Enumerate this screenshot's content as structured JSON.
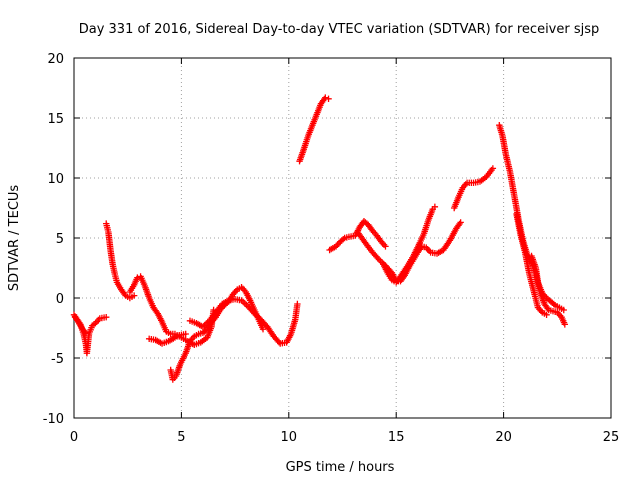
{
  "chart_data": {
    "type": "scatter",
    "title": "Day 331 of 2016, Sidereal Day-to-day VTEC variation (SDTVAR) for receiver sjsp",
    "xlabel": "GPS time / hours",
    "ylabel": "SDTVAR / TECUs",
    "xlim": [
      0,
      25
    ],
    "ylim": [
      -10,
      20
    ],
    "xticks": [
      "0",
      "5",
      "10",
      "15",
      "20",
      "25"
    ],
    "yticks": [
      "-10",
      "-5",
      "0",
      "5",
      "10",
      "15",
      "20"
    ],
    "grid": true,
    "marker": "plus",
    "series": [
      {
        "color": "#ff0000",
        "segments": [
          [
            [
              0.0,
              -1.4
            ],
            [
              0.15,
              -1.8
            ],
            [
              0.3,
              -2.2
            ],
            [
              0.45,
              -3.0
            ],
            [
              0.55,
              -3.8
            ],
            [
              0.6,
              -4.6
            ],
            [
              0.7,
              -3.0
            ],
            [
              0.85,
              -2.3
            ],
            [
              1.0,
              -2.1
            ],
            [
              1.2,
              -1.7
            ],
            [
              1.5,
              -1.6
            ]
          ],
          [
            [
              0.05,
              -1.6
            ],
            [
              0.2,
              -2.0
            ],
            [
              0.4,
              -2.6
            ],
            [
              0.55,
              -2.9
            ]
          ],
          [
            [
              1.5,
              6.2
            ],
            [
              1.6,
              5.5
            ],
            [
              1.7,
              4.0
            ],
            [
              1.8,
              2.8
            ],
            [
              1.9,
              2.0
            ],
            [
              2.0,
              1.3
            ],
            [
              2.2,
              0.7
            ],
            [
              2.4,
              0.2
            ],
            [
              2.6,
              0.0
            ],
            [
              2.8,
              0.2
            ]
          ],
          [
            [
              2.6,
              0.5
            ],
            [
              2.8,
              1.1
            ],
            [
              2.95,
              1.7
            ],
            [
              3.1,
              1.8
            ],
            [
              3.3,
              1.0
            ],
            [
              3.5,
              0.0
            ],
            [
              3.7,
              -0.8
            ],
            [
              3.9,
              -1.3
            ],
            [
              4.1,
              -2.0
            ],
            [
              4.3,
              -2.8
            ],
            [
              4.5,
              -3.0
            ],
            [
              4.7,
              -3.0
            ],
            [
              4.9,
              -3.2
            ],
            [
              5.1,
              -3.4
            ],
            [
              5.3,
              -3.6
            ],
            [
              5.6,
              -3.9
            ],
            [
              5.9,
              -3.7
            ],
            [
              6.2,
              -3.3
            ],
            [
              6.4,
              -2.4
            ],
            [
              6.5,
              -1.0
            ]
          ],
          [
            [
              3.5,
              -3.4
            ],
            [
              3.8,
              -3.5
            ],
            [
              4.1,
              -3.8
            ],
            [
              4.4,
              -3.6
            ],
            [
              4.7,
              -3.3
            ],
            [
              4.9,
              -3.1
            ],
            [
              5.2,
              -3.0
            ]
          ],
          [
            [
              4.5,
              -6.0
            ],
            [
              4.6,
              -6.8
            ],
            [
              4.75,
              -6.5
            ],
            [
              4.95,
              -5.5
            ],
            [
              5.2,
              -4.6
            ],
            [
              5.4,
              -3.6
            ],
            [
              5.6,
              -3.2
            ],
            [
              5.8,
              -3.0
            ],
            [
              6.0,
              -2.9
            ],
            [
              6.2,
              -2.6
            ],
            [
              6.4,
              -2.0
            ],
            [
              6.6,
              -1.6
            ],
            [
              6.8,
              -1.0
            ],
            [
              7.0,
              -0.6
            ],
            [
              7.2,
              -0.3
            ],
            [
              7.4,
              0.3
            ],
            [
              7.6,
              0.7
            ],
            [
              7.8,
              0.9
            ],
            [
              8.0,
              0.5
            ],
            [
              8.2,
              -0.2
            ],
            [
              8.4,
              -1.0
            ],
            [
              8.6,
              -1.8
            ],
            [
              8.8,
              -2.6
            ]
          ],
          [
            [
              5.4,
              -1.9
            ],
            [
              5.7,
              -2.1
            ],
            [
              6.0,
              -2.4
            ],
            [
              6.3,
              -1.9
            ],
            [
              6.6,
              -1.2
            ],
            [
              6.9,
              -0.5
            ],
            [
              7.2,
              -0.2
            ],
            [
              7.5,
              -0.1
            ],
            [
              7.8,
              -0.2
            ],
            [
              8.1,
              -0.7
            ],
            [
              8.4,
              -1.3
            ],
            [
              8.7,
              -1.8
            ],
            [
              9.0,
              -2.4
            ],
            [
              9.3,
              -3.2
            ],
            [
              9.6,
              -3.8
            ],
            [
              9.9,
              -3.7
            ],
            [
              10.1,
              -3.0
            ],
            [
              10.3,
              -1.8
            ],
            [
              10.4,
              -0.5
            ]
          ],
          [
            [
              10.5,
              11.4
            ],
            [
              10.7,
              12.4
            ],
            [
              10.9,
              13.5
            ],
            [
              11.1,
              14.4
            ],
            [
              11.3,
              15.3
            ],
            [
              11.5,
              16.2
            ],
            [
              11.7,
              16.7
            ],
            [
              11.85,
              16.6
            ]
          ],
          [
            [
              11.9,
              4.0
            ],
            [
              12.2,
              4.3
            ],
            [
              12.4,
              4.7
            ],
            [
              12.6,
              5.0
            ],
            [
              12.8,
              5.1
            ],
            [
              13.1,
              5.2
            ],
            [
              13.3,
              5.9
            ],
            [
              13.5,
              6.4
            ],
            [
              13.7,
              6.1
            ],
            [
              13.9,
              5.6
            ],
            [
              14.1,
              5.2
            ],
            [
              14.3,
              4.7
            ],
            [
              14.5,
              4.3
            ]
          ],
          [
            [
              13.2,
              5.5
            ],
            [
              13.4,
              5.0
            ],
            [
              13.6,
              4.5
            ],
            [
              13.9,
              3.8
            ],
            [
              14.2,
              3.2
            ],
            [
              14.5,
              2.7
            ],
            [
              14.8,
              2.1
            ],
            [
              15.0,
              1.4
            ],
            [
              15.2,
              1.4
            ],
            [
              15.4,
              1.9
            ],
            [
              15.6,
              2.6
            ],
            [
              15.8,
              3.2
            ],
            [
              16.0,
              3.8
            ],
            [
              16.2,
              4.3
            ],
            [
              16.4,
              4.2
            ],
            [
              16.6,
              3.8
            ],
            [
              16.9,
              3.7
            ],
            [
              17.2,
              4.0
            ],
            [
              17.5,
              4.8
            ],
            [
              17.8,
              5.8
            ],
            [
              18.0,
              6.3
            ]
          ],
          [
            [
              14.4,
              2.8
            ],
            [
              14.6,
              2.1
            ],
            [
              14.8,
              1.5
            ],
            [
              15.0,
              1.3
            ],
            [
              15.2,
              1.8
            ],
            [
              15.5,
              2.6
            ],
            [
              15.8,
              3.5
            ],
            [
              16.1,
              4.6
            ],
            [
              16.3,
              5.4
            ],
            [
              16.5,
              6.5
            ],
            [
              16.7,
              7.4
            ],
            [
              16.8,
              7.6
            ]
          ],
          [
            [
              17.7,
              7.5
            ],
            [
              17.9,
              8.4
            ],
            [
              18.1,
              9.2
            ],
            [
              18.3,
              9.6
            ],
            [
              18.6,
              9.6
            ],
            [
              18.9,
              9.7
            ],
            [
              19.2,
              10.1
            ],
            [
              19.5,
              10.8
            ]
          ],
          [
            [
              19.8,
              14.4
            ],
            [
              19.95,
              13.5
            ],
            [
              20.1,
              12.0
            ],
            [
              20.3,
              10.5
            ],
            [
              20.5,
              8.5
            ],
            [
              20.7,
              6.5
            ],
            [
              20.9,
              4.8
            ],
            [
              21.1,
              3.6
            ],
            [
              21.3,
              3.0
            ],
            [
              21.5,
              2.0
            ],
            [
              21.7,
              0.5
            ],
            [
              21.9,
              -0.5
            ],
            [
              22.1,
              -1.0
            ],
            [
              22.3,
              -1.1
            ],
            [
              22.5,
              -1.2
            ],
            [
              22.7,
              -1.6
            ],
            [
              22.85,
              -2.2
            ]
          ],
          [
            [
              21.3,
              3.5
            ],
            [
              21.5,
              2.5
            ],
            [
              21.6,
              1.3
            ],
            [
              21.8,
              0.4
            ],
            [
              22.0,
              0.0
            ],
            [
              22.2,
              -0.3
            ],
            [
              22.4,
              -0.6
            ],
            [
              22.6,
              -0.8
            ],
            [
              22.8,
              -1.0
            ]
          ],
          [
            [
              20.6,
              7.0
            ],
            [
              20.8,
              5.2
            ],
            [
              21.0,
              3.8
            ],
            [
              21.2,
              2.0
            ],
            [
              21.4,
              0.6
            ],
            [
              21.6,
              -0.8
            ],
            [
              21.8,
              -1.2
            ],
            [
              22.0,
              -1.4
            ]
          ]
        ]
      }
    ]
  }
}
